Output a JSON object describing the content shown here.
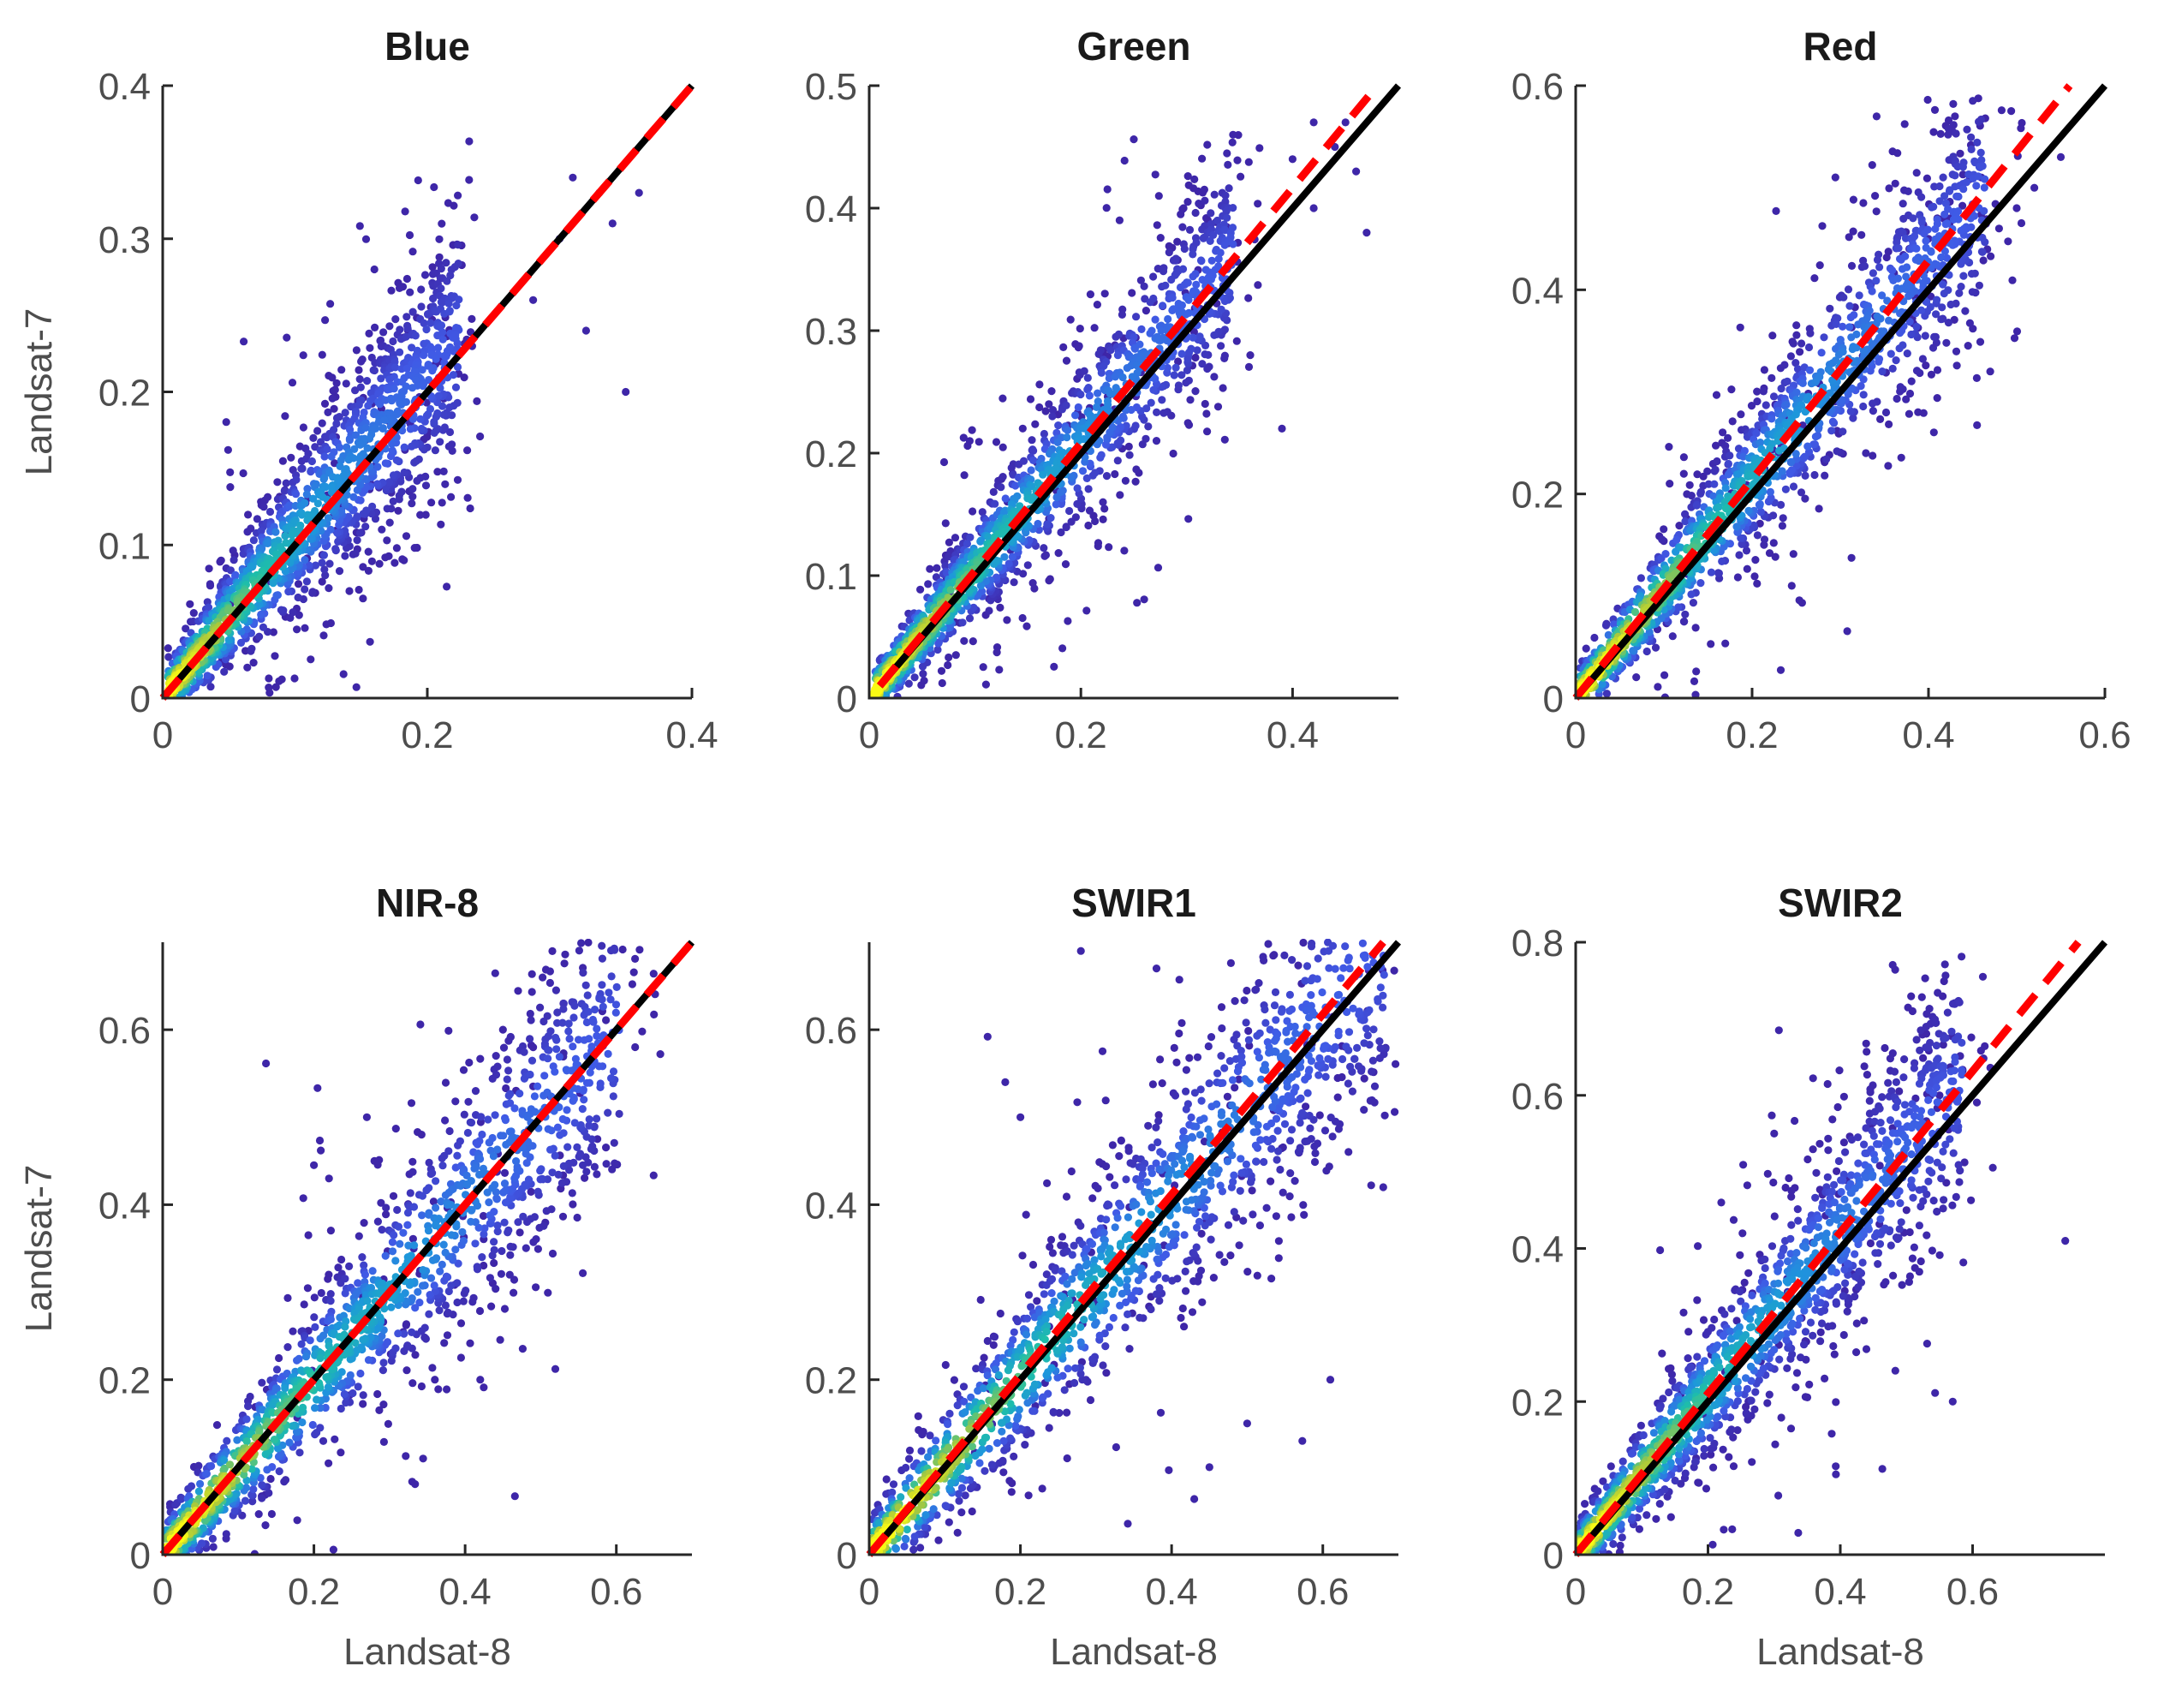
{
  "chart_data": [
    {
      "type": "scatter",
      "title": "Blue",
      "xlabel": "",
      "ylabel": "Landsat-7",
      "xlim": [
        0,
        0.4
      ],
      "ylim": [
        0,
        0.4
      ],
      "xticks": [
        0,
        0.2,
        0.4
      ],
      "yticks": [
        0,
        0.1,
        0.2,
        0.3,
        0.4
      ],
      "xtick_labels": [
        "0",
        "0.2",
        "0.4"
      ],
      "ytick_labels": [
        "0",
        "0.1",
        "0.2",
        "0.3",
        "0.4"
      ],
      "density_color": "parula colormap (blue to yellow)",
      "series": [
        {
          "name": "1:1 line",
          "style": "solid",
          "color": "#000000",
          "x": [
            0,
            0.4
          ],
          "y": [
            0,
            0.4
          ]
        },
        {
          "name": "regression line",
          "style": "dashed",
          "color": "#ff0000",
          "x": [
            0,
            0.4
          ],
          "y": [
            0,
            0.4
          ]
        }
      ],
      "cloud": {
        "slope": 1.05,
        "spread": 0.028,
        "max_x": 0.22,
        "outliers": [
          [
            0.31,
            0.34
          ],
          [
            0.33,
            0.33
          ],
          [
            0.34,
            0.31
          ],
          [
            0.3,
            0.3
          ],
          [
            0.36,
            0.33
          ],
          [
            0.28,
            0.26
          ],
          [
            0.35,
            0.2
          ],
          [
            0.32,
            0.24
          ],
          [
            0.16,
            0.28
          ],
          [
            0.21,
            0.22
          ]
        ]
      }
    },
    {
      "type": "scatter",
      "title": "Green",
      "xlabel": "",
      "ylabel": "",
      "xlim": [
        0,
        0.5
      ],
      "ylim": [
        0,
        0.5
      ],
      "xticks": [
        0,
        0.2,
        0.4
      ],
      "yticks": [
        0,
        0.1,
        0.2,
        0.3,
        0.4,
        0.5
      ],
      "xtick_labels": [
        "0",
        "0.2",
        "0.4"
      ],
      "ytick_labels": [
        "0",
        "0.1",
        "0.2",
        "0.3",
        "0.4",
        "0.5"
      ],
      "density_color": "parula colormap (blue to yellow)",
      "series": [
        {
          "name": "1:1 line",
          "style": "solid",
          "color": "#000000",
          "x": [
            0.01,
            0.5
          ],
          "y": [
            0.01,
            0.5
          ]
        },
        {
          "name": "regression line",
          "style": "dashed",
          "color": "#ff0000",
          "x": [
            0.01,
            0.48
          ],
          "y": [
            0.01,
            0.5
          ]
        }
      ],
      "cloud": {
        "slope": 1.05,
        "spread": 0.03,
        "max_x": 0.34,
        "outliers": [
          [
            0.4,
            0.44
          ],
          [
            0.42,
            0.47
          ],
          [
            0.44,
            0.45
          ],
          [
            0.46,
            0.43
          ],
          [
            0.47,
            0.38
          ],
          [
            0.45,
            0.47
          ],
          [
            0.36,
            0.28
          ],
          [
            0.39,
            0.22
          ],
          [
            0.32,
            0.39
          ],
          [
            0.42,
            0.4
          ]
        ]
      }
    },
    {
      "type": "scatter",
      "title": "Red",
      "xlabel": "",
      "ylabel": "",
      "xlim": [
        0,
        0.6
      ],
      "ylim": [
        0,
        0.6
      ],
      "xticks": [
        0,
        0.2,
        0.4,
        0.6
      ],
      "yticks": [
        0,
        0.2,
        0.4,
        0.6
      ],
      "xtick_labels": [
        "0",
        "0.2",
        "0.4",
        "0.6"
      ],
      "ytick_labels": [
        "0",
        "0.2",
        "0.4",
        "0.6"
      ],
      "density_color": "parula colormap (blue to yellow)",
      "series": [
        {
          "name": "1:1 line",
          "style": "solid",
          "color": "#000000",
          "x": [
            0,
            0.6
          ],
          "y": [
            0,
            0.6
          ]
        },
        {
          "name": "regression line",
          "style": "dashed",
          "color": "#ff0000",
          "x": [
            0,
            0.56
          ],
          "y": [
            0,
            0.6
          ]
        }
      ],
      "cloud": {
        "slope": 1.07,
        "spread": 0.04,
        "max_x": 0.46,
        "outliers": [
          [
            0.43,
            0.57
          ],
          [
            0.52,
            0.5
          ],
          [
            0.55,
            0.53
          ],
          [
            0.48,
            0.46
          ],
          [
            0.47,
            0.32
          ],
          [
            0.4,
            0.45
          ],
          [
            0.46,
            0.51
          ],
          [
            0.5,
            0.48
          ]
        ]
      }
    },
    {
      "type": "scatter",
      "title": "NIR-8",
      "xlabel": "Landsat-8",
      "ylabel": "Landsat-7",
      "xlim": [
        0,
        0.7
      ],
      "ylim": [
        0,
        0.7
      ],
      "xticks": [
        0,
        0.2,
        0.4,
        0.6
      ],
      "yticks": [
        0,
        0.2,
        0.4,
        0.6
      ],
      "xtick_labels": [
        "0",
        "0.2",
        "0.4",
        "0.6"
      ],
      "ytick_labels": [
        "0",
        "0.2",
        "0.4",
        "0.6"
      ],
      "density_color": "parula colormap (blue to yellow)",
      "series": [
        {
          "name": "1:1 line",
          "style": "solid",
          "color": "#000000",
          "x": [
            0,
            0.7
          ],
          "y": [
            0,
            0.7
          ]
        },
        {
          "name": "regression line",
          "style": "dashed",
          "color": "#ff0000",
          "x": [
            0,
            0.7
          ],
          "y": [
            0,
            0.7
          ]
        }
      ],
      "cloud": {
        "slope": 1.0,
        "spread": 0.055,
        "max_x": 0.6,
        "outliers": [
          [
            0.27,
            0.5
          ],
          [
            0.22,
            0.43
          ],
          [
            0.36,
            0.2
          ],
          [
            0.42,
            0.2
          ],
          [
            0.49,
            0.58
          ],
          [
            0.53,
            0.63
          ],
          [
            0.45,
            0.6
          ],
          [
            0.28,
            0.45
          ]
        ]
      }
    },
    {
      "type": "scatter",
      "title": "SWIR1",
      "xlabel": "Landsat-8",
      "ylabel": "",
      "xlim": [
        0,
        0.7
      ],
      "ylim": [
        0,
        0.7
      ],
      "xticks": [
        0,
        0.2,
        0.4,
        0.6
      ],
      "yticks": [
        0,
        0.2,
        0.4,
        0.6
      ],
      "xtick_labels": [
        "0",
        "0.2",
        "0.4",
        "0.6"
      ],
      "ytick_labels": [
        "0",
        "0.2",
        "0.4",
        "0.6"
      ],
      "density_color": "parula colormap (blue to yellow)",
      "series": [
        {
          "name": "1:1 line",
          "style": "solid",
          "color": "#000000",
          "x": [
            0,
            0.7
          ],
          "y": [
            0,
            0.7
          ]
        },
        {
          "name": "regression line",
          "style": "dashed",
          "color": "#ff0000",
          "x": [
            0,
            0.68
          ],
          "y": [
            0,
            0.7
          ]
        }
      ],
      "cloud": {
        "slope": 1.02,
        "spread": 0.06,
        "max_x": 0.68,
        "outliers": [
          [
            0.28,
            0.69
          ],
          [
            0.38,
            0.67
          ],
          [
            0.2,
            0.5
          ],
          [
            0.45,
            0.1
          ],
          [
            0.5,
            0.15
          ],
          [
            0.61,
            0.2
          ],
          [
            0.68,
            0.42
          ],
          [
            0.18,
            0.54
          ]
        ]
      }
    },
    {
      "type": "scatter",
      "title": "SWIR2",
      "xlabel": "Landsat-8",
      "ylabel": "",
      "xlim": [
        0,
        0.8
      ],
      "ylim": [
        0,
        0.8
      ],
      "xticks": [
        0,
        0.2,
        0.4,
        0.6
      ],
      "yticks": [
        0,
        0.2,
        0.4,
        0.6,
        0.8
      ],
      "xtick_labels": [
        "0",
        "0.2",
        "0.4",
        "0.6"
      ],
      "ytick_labels": [
        "0",
        "0.2",
        "0.4",
        "0.6",
        "0.8"
      ],
      "density_color": "parula colormap (blue to yellow)",
      "series": [
        {
          "name": "1:1 line",
          "style": "solid",
          "color": "#000000",
          "x": [
            0,
            0.8
          ],
          "y": [
            0,
            0.8
          ]
        },
        {
          "name": "regression line",
          "style": "dashed",
          "color": "#ff0000",
          "x": [
            0,
            0.76
          ],
          "y": [
            0,
            0.8
          ]
        }
      ],
      "cloud": {
        "slope": 1.06,
        "spread": 0.055,
        "max_x": 0.58,
        "outliers": [
          [
            0.74,
            0.41
          ],
          [
            0.57,
            0.2
          ],
          [
            0.3,
            0.55
          ],
          [
            0.22,
            0.46
          ],
          [
            0.5,
            0.45
          ],
          [
            0.55,
            0.6
          ]
        ]
      }
    }
  ]
}
